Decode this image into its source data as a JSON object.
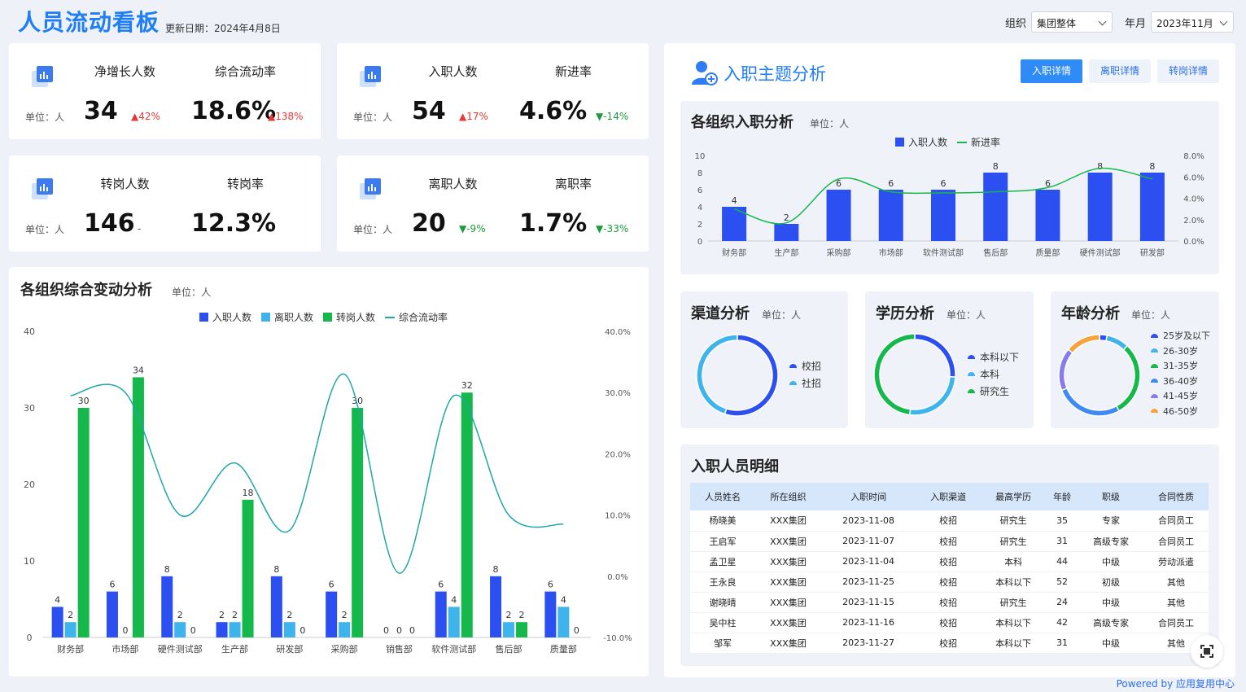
{
  "header": {
    "title": "人员流动看板",
    "update_label": "更新日期：2024年4月8日"
  },
  "filters": {
    "org_label": "组织",
    "org_value": "集团整体",
    "year_label": "年月",
    "year_value": "2023年11月"
  },
  "kpis": [
    {
      "unit": "单位：人",
      "a_label": "净增长人数",
      "a_value": "34",
      "a_change": "▲42%",
      "b_label": "综合流动率",
      "b_value": "18.6%",
      "b_change": "▲138%"
    },
    {
      "unit": "单位：人",
      "a_label": "入职人数",
      "a_value": "54",
      "a_change": "▲17%",
      "b_label": "新进率",
      "b_value": "4.6%",
      "b_change": "▼-14%"
    },
    {
      "unit": "单位：人",
      "a_label": "转岗人数",
      "a_value": "146",
      "a_change": "-",
      "b_label": "转岗率",
      "b_value": "12.3%",
      "b_change": "-"
    },
    {
      "unit": "单位：人",
      "a_label": "离职人数",
      "a_value": "20",
      "a_change": "▼-9%",
      "b_label": "离职率",
      "b_value": "1.7%",
      "b_change": "▼-33%"
    }
  ],
  "combo": {
    "title": "各组织综合变动分析",
    "unit": "单位：人",
    "legend": [
      "入职人数",
      "离职人数",
      "转岗人数",
      "综合流动率"
    ]
  },
  "right": {
    "title": "入职主题分析",
    "buttons": [
      "入职详情",
      "离职详情",
      "转岗详情"
    ]
  },
  "onboard": {
    "title": "各组织入职分析",
    "unit": "单位：人",
    "legend": [
      "入职人数",
      "新进率"
    ]
  },
  "channel": {
    "title": "渠道分析",
    "unit": "单位：人",
    "legend": [
      "校招",
      "社招"
    ]
  },
  "edu": {
    "title": "学历分析",
    "unit": "单位：人",
    "legend": [
      "本科以下",
      "本科",
      "研究生"
    ]
  },
  "age": {
    "title": "年龄分析",
    "unit": "单位：人",
    "legend": [
      "25岁及以下",
      "26-30岁",
      "31-35岁",
      "36-40岁",
      "41-45岁",
      "46-50岁"
    ]
  },
  "detail": {
    "title": "入职人员明细",
    "columns": [
      "人员姓名",
      "所在组织",
      "入职时间",
      "入职渠道",
      "最高学历",
      "年龄",
      "职级",
      "合同性质"
    ],
    "rows": [
      [
        "杨晓美",
        "XXX集团",
        "2023-11-08",
        "校招",
        "研究生",
        "35",
        "专家",
        "合同员工"
      ],
      [
        "王启军",
        "XXX集团",
        "2023-11-07",
        "校招",
        "研究生",
        "31",
        "高级专家",
        "合同员工"
      ],
      [
        "孟卫星",
        "XXX集团",
        "2023-11-04",
        "校招",
        "本科",
        "44",
        "中级",
        "劳动派遣"
      ],
      [
        "王永良",
        "XXX集团",
        "2023-11-25",
        "校招",
        "本科以下",
        "52",
        "初级",
        "其他"
      ],
      [
        "谢晓晴",
        "XXX集团",
        "2023-11-15",
        "校招",
        "研究生",
        "24",
        "中级",
        "其他"
      ],
      [
        "吴中柱",
        "XXX集团",
        "2023-11-16",
        "校招",
        "本科以下",
        "42",
        "高级专家",
        "合同员工"
      ],
      [
        "邹军",
        "XXX集团",
        "2023-11-27",
        "校招",
        "本科以下",
        "31",
        "中级",
        "其他"
      ]
    ]
  },
  "footer": {
    "powered": "Powered by 应用复用中心"
  },
  "colors": {
    "blue": "#2b4ff0",
    "light_blue": "#3fb3ec",
    "green": "#15b84a",
    "line": "#1fa6a8",
    "accent": "#1f7ef6"
  },
  "chart_data": [
    {
      "type": "bar",
      "categories": [
        "财务部",
        "市场部",
        "硬件测试部",
        "生产部",
        "研发部",
        "采购部",
        "销售部",
        "软件测试部",
        "售后部",
        "质量部"
      ],
      "series": [
        {
          "name": "入职人数",
          "values": [
            4,
            6,
            8,
            2,
            8,
            6,
            0,
            6,
            8,
            6
          ]
        },
        {
          "name": "离职人数",
          "values": [
            2,
            0,
            2,
            2,
            2,
            2,
            0,
            4,
            2,
            4
          ]
        },
        {
          "name": "转岗人数",
          "values": [
            30,
            34,
            0,
            18,
            0,
            30,
            0,
            32,
            2,
            0
          ]
        },
        {
          "name": "综合流动率",
          "axis": "right",
          "values": [
            29.5,
            30.0,
            10.0,
            18.5,
            7.5,
            33.0,
            0.5,
            29.5,
            10.0,
            8.5
          ]
        }
      ],
      "ylim": [
        0,
        40
      ],
      "y2lim": [
        -10,
        40
      ],
      "yticks": [
        "0",
        "10",
        "20",
        "30",
        "40"
      ],
      "y2ticks": [
        "-10.0%",
        "0.0%",
        "10.0%",
        "20.0%",
        "30.0%",
        "40.0%"
      ]
    },
    {
      "type": "bar",
      "categories": [
        "财务部",
        "生产部",
        "采购部",
        "市场部",
        "软件测试部",
        "售后部",
        "质量部",
        "硬件测试部",
        "研发部"
      ],
      "series": [
        {
          "name": "入职人数",
          "values": [
            4,
            2,
            6,
            6,
            6,
            8,
            6,
            8,
            8
          ]
        },
        {
          "name": "新进率",
          "axis": "right",
          "values": [
            3.0,
            1.7,
            5.8,
            4.6,
            4.5,
            4.6,
            5.0,
            6.8,
            5.8
          ]
        }
      ],
      "ylim": [
        0,
        10
      ],
      "y2lim": [
        0,
        8
      ],
      "yticks": [
        "0",
        "2",
        "4",
        "6",
        "8",
        "10"
      ],
      "y2ticks": [
        "0.0%",
        "2.0%",
        "4.0%",
        "6.0%",
        "8.0%"
      ]
    },
    {
      "type": "pie",
      "labels": [
        "校招",
        "社招"
      ],
      "values": [
        55,
        45
      ]
    },
    {
      "type": "pie",
      "labels": [
        "本科以下",
        "本科",
        "研究生"
      ],
      "values": [
        26,
        26,
        48
      ]
    },
    {
      "type": "pie",
      "labels": [
        "25岁及以下",
        "26-30岁",
        "31-35岁",
        "36-40岁",
        "41-45岁",
        "46-50岁"
      ],
      "values": [
        3,
        9,
        30,
        27,
        17,
        14
      ]
    }
  ]
}
